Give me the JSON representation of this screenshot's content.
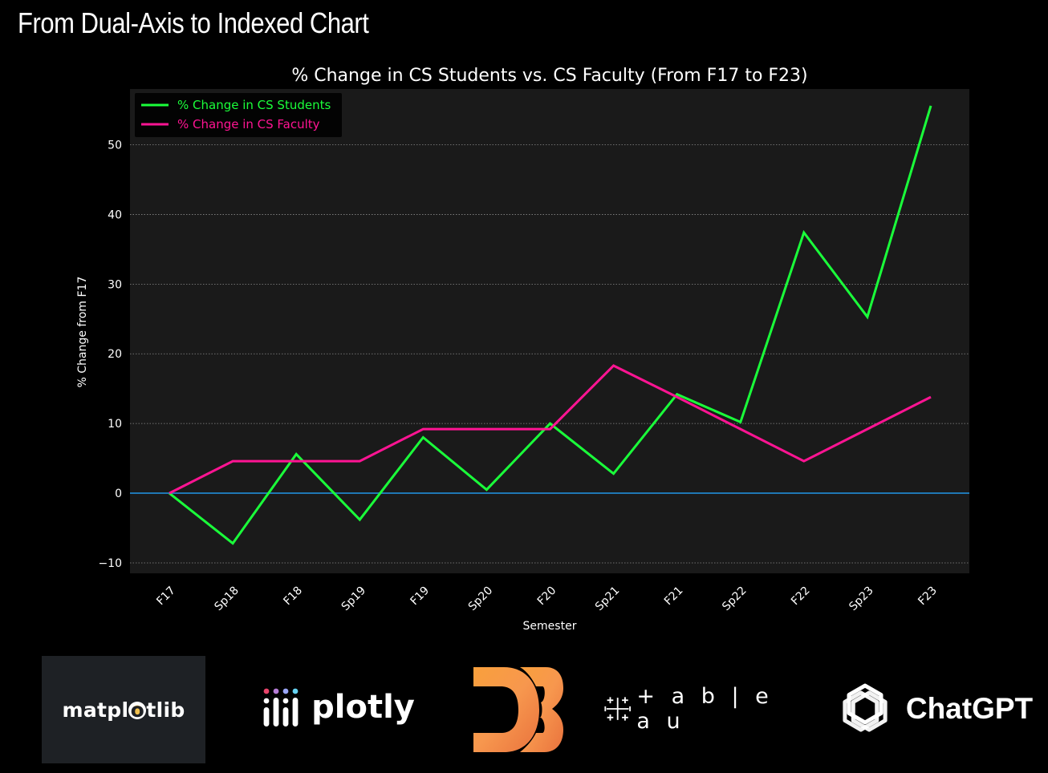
{
  "slide": {
    "title": "From Dual-Axis to Indexed Chart"
  },
  "colors": {
    "background": "#000000",
    "plot_background": "#1a1a1a",
    "students_line": "#1aff3a",
    "faculty_line": "#ff1493",
    "baseline": "#1f77b4",
    "text": "#ffffff"
  },
  "chart_data": {
    "type": "line",
    "title": "% Change in CS Students vs. CS Faculty (From F17 to F23)",
    "xlabel": "Semester",
    "ylabel": "% Change from F17",
    "categories": [
      "F17",
      "Sp18",
      "F18",
      "Sp19",
      "F19",
      "Sp20",
      "F20",
      "Sp21",
      "F21",
      "Sp22",
      "F22",
      "Sp23",
      "F23"
    ],
    "ylim": [
      -11.5,
      58
    ],
    "yticks": [
      -10,
      0,
      10,
      20,
      30,
      40,
      50
    ],
    "ytick_labels": [
      "−10",
      "0",
      "10",
      "20",
      "30",
      "40",
      "50"
    ],
    "grid": "horizontal dotted",
    "baseline": 0,
    "legend_position": "top-left",
    "series": [
      {
        "name": "% Change in CS Students",
        "color": "#1aff3a",
        "values": [
          0,
          -7.2,
          5.6,
          -3.8,
          8.0,
          0.5,
          10.0,
          2.8,
          14.2,
          10.2,
          37.4,
          25.3,
          55.6
        ]
      },
      {
        "name": "% Change in CS Faculty",
        "color": "#ff1493",
        "values": [
          0,
          4.6,
          4.6,
          4.6,
          9.2,
          9.2,
          9.2,
          18.3,
          13.8,
          9.2,
          4.6,
          9.2,
          13.8
        ]
      }
    ]
  },
  "logos": [
    {
      "name": "matplotlib",
      "label": "matplotlib"
    },
    {
      "name": "plotly",
      "label": "plotly"
    },
    {
      "name": "d3",
      "label": "D3"
    },
    {
      "name": "tableau",
      "label": "+ a b | e a u"
    },
    {
      "name": "chatgpt",
      "label": "ChatGPT"
    }
  ]
}
